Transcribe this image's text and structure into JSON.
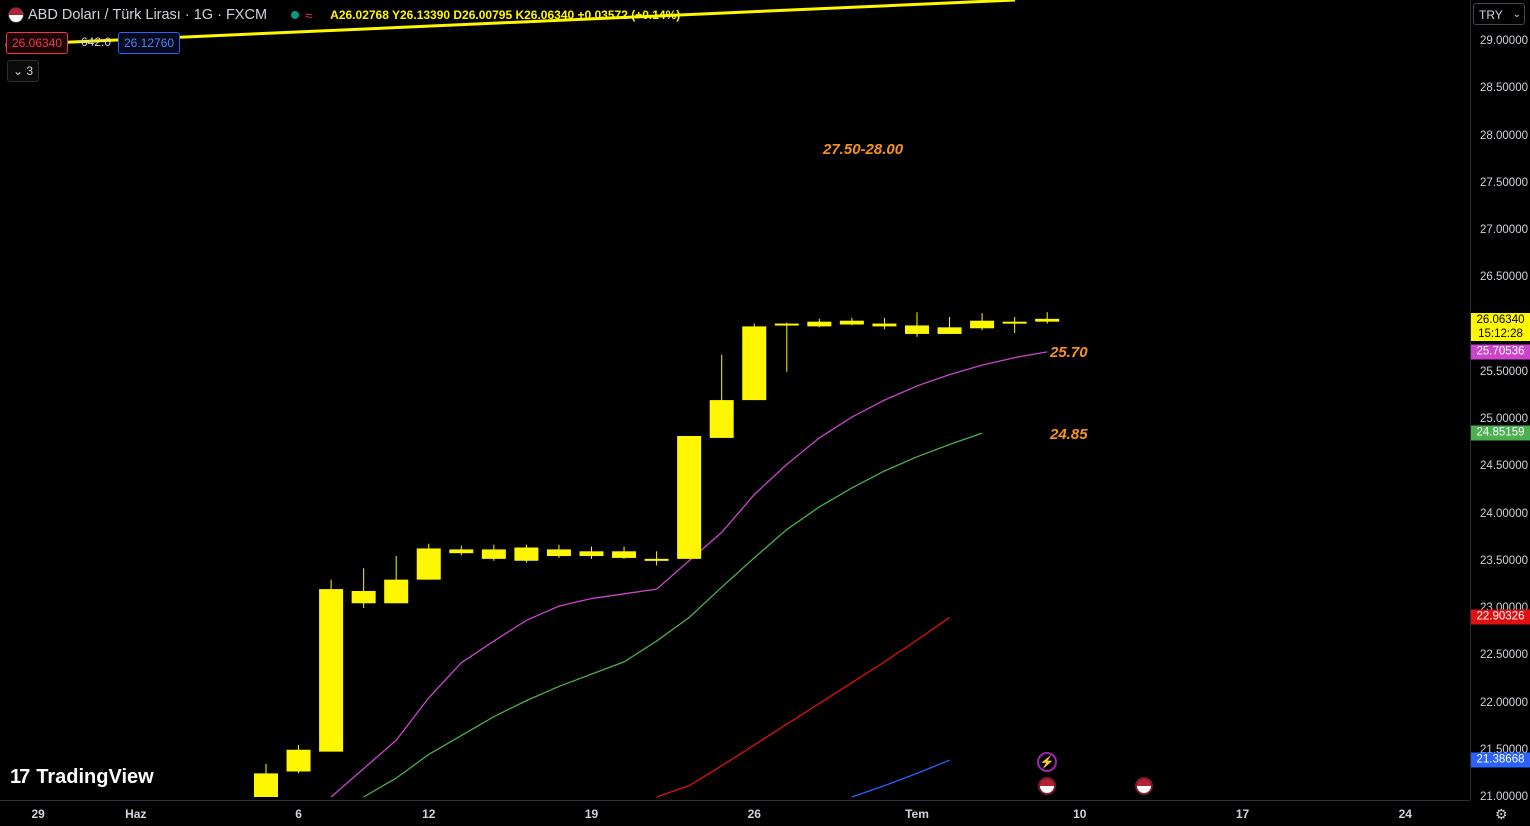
{
  "header": {
    "title": "ABD Doları / Türk Lirası · 1G · FXCM",
    "ohlc": "A26.02768 Y26.13390 D26.00795 K26.06340 +0.03572 (+0.14%)",
    "sell_price": "26.06340",
    "spread": "642.0",
    "buy_price": "26.12760",
    "collapse_label": "3",
    "currency": "TRY",
    "wave_glyph": "≈"
  },
  "brand": {
    "logo_mark": "17",
    "name": "TradingView"
  },
  "annotations": {
    "target_range": "27.50-28.00",
    "ma1_label": "25.70",
    "ma2_label": "24.85"
  },
  "chart_data": {
    "type": "candlestick",
    "ylim": [
      21.0,
      29.2
    ],
    "y_ticks": [
      "29.00000",
      "28.50000",
      "28.00000",
      "27.50000",
      "27.00000",
      "26.50000",
      "26.00000",
      "25.50000",
      "25.00000",
      "24.50000",
      "24.00000",
      "23.50000",
      "23.00000",
      "22.50000",
      "22.00000",
      "21.50000",
      "21.00000"
    ],
    "x_ticks": [
      {
        "label": "29",
        "x": -7
      },
      {
        "label": "Haz",
        "x": -4
      },
      {
        "label": "6",
        "x": 1
      },
      {
        "label": "12",
        "x": 5
      },
      {
        "label": "19",
        "x": 10
      },
      {
        "label": "26",
        "x": 15
      },
      {
        "label": "Tem",
        "x": 20
      },
      {
        "label": "10",
        "x": 25
      },
      {
        "label": "17",
        "x": 30
      },
      {
        "label": "24",
        "x": 35
      }
    ],
    "candles": [
      {
        "x": 0,
        "o": 21.0,
        "h": 21.35,
        "l": 21.0,
        "c": 21.25
      },
      {
        "x": 1,
        "o": 21.27,
        "h": 21.55,
        "l": 21.25,
        "c": 21.5
      },
      {
        "x": 2,
        "o": 21.48,
        "h": 23.3,
        "l": 21.48,
        "c": 23.2
      },
      {
        "x": 3,
        "o": 23.05,
        "h": 23.42,
        "l": 23.0,
        "c": 23.18
      },
      {
        "x": 4,
        "o": 23.05,
        "h": 23.55,
        "l": 23.05,
        "c": 23.3
      },
      {
        "x": 5,
        "o": 23.3,
        "h": 23.68,
        "l": 23.3,
        "c": 23.63
      },
      {
        "x": 6,
        "o": 23.58,
        "h": 23.66,
        "l": 23.56,
        "c": 23.62
      },
      {
        "x": 7,
        "o": 23.52,
        "h": 23.67,
        "l": 23.5,
        "c": 23.62
      },
      {
        "x": 8,
        "o": 23.5,
        "h": 23.67,
        "l": 23.48,
        "c": 23.64
      },
      {
        "x": 9,
        "o": 23.55,
        "h": 23.67,
        "l": 23.53,
        "c": 23.62
      },
      {
        "x": 10,
        "o": 23.55,
        "h": 23.65,
        "l": 23.52,
        "c": 23.6
      },
      {
        "x": 11,
        "o": 23.53,
        "h": 23.65,
        "l": 23.52,
        "c": 23.6
      },
      {
        "x": 12,
        "o": 23.52,
        "h": 23.6,
        "l": 23.45,
        "c": 23.52
      },
      {
        "x": 13,
        "o": 23.52,
        "h": 24.82,
        "l": 23.52,
        "c": 24.82
      },
      {
        "x": 14,
        "o": 24.8,
        "h": 25.68,
        "l": 24.8,
        "c": 25.2
      },
      {
        "x": 15,
        "o": 25.2,
        "h": 26.01,
        "l": 25.2,
        "c": 25.98
      },
      {
        "x": 16,
        "o": 26.0,
        "h": 26.02,
        "l": 25.5,
        "c": 26.01
      },
      {
        "x": 17,
        "o": 25.98,
        "h": 26.06,
        "l": 25.97,
        "c": 26.03
      },
      {
        "x": 18,
        "o": 26.0,
        "h": 26.07,
        "l": 25.99,
        "c": 26.04
      },
      {
        "x": 19,
        "o": 25.98,
        "h": 26.07,
        "l": 25.95,
        "c": 26.01
      },
      {
        "x": 20,
        "o": 25.9,
        "h": 26.13,
        "l": 25.87,
        "c": 25.99
      },
      {
        "x": 21,
        "o": 25.9,
        "h": 26.08,
        "l": 25.9,
        "c": 25.97
      },
      {
        "x": 22,
        "o": 25.96,
        "h": 26.12,
        "l": 25.94,
        "c": 26.04
      },
      {
        "x": 23,
        "o": 26.02,
        "h": 26.08,
        "l": 25.91,
        "c": 26.03
      },
      {
        "x": 24,
        "o": 26.03,
        "h": 26.13,
        "l": 26.01,
        "c": 26.06
      }
    ],
    "series": [
      {
        "name": "",
        "color": "#cc44cc",
        "last": "25.70536",
        "points": [
          [
            2,
            21.0
          ],
          [
            4,
            21.6
          ],
          [
            5,
            22.05
          ],
          [
            6,
            22.42
          ],
          [
            7,
            22.65
          ],
          [
            8,
            22.87
          ],
          [
            9,
            23.02
          ],
          [
            10,
            23.1
          ],
          [
            11,
            23.15
          ],
          [
            12,
            23.2
          ],
          [
            13,
            23.5
          ],
          [
            14,
            23.8
          ],
          [
            15,
            24.2
          ],
          [
            16,
            24.52
          ],
          [
            17,
            24.8
          ],
          [
            18,
            25.02
          ],
          [
            19,
            25.2
          ],
          [
            20,
            25.35
          ],
          [
            21,
            25.47
          ],
          [
            22,
            25.57
          ],
          [
            23,
            25.65
          ],
          [
            24,
            25.71
          ]
        ]
      },
      {
        "name": "",
        "color": "#4caf50",
        "last": "24.85159",
        "points": [
          [
            3,
            21.0
          ],
          [
            4,
            21.2
          ],
          [
            5,
            21.45
          ],
          [
            6,
            21.65
          ],
          [
            7,
            21.85
          ],
          [
            8,
            22.02
          ],
          [
            9,
            22.17
          ],
          [
            10,
            22.3
          ],
          [
            11,
            22.43
          ],
          [
            12,
            22.65
          ],
          [
            13,
            22.9
          ],
          [
            14,
            23.22
          ],
          [
            15,
            23.53
          ],
          [
            16,
            23.83
          ],
          [
            17,
            24.07
          ],
          [
            18,
            24.27
          ],
          [
            19,
            24.45
          ],
          [
            20,
            24.6
          ],
          [
            21,
            24.73
          ],
          [
            22,
            24.85
          ]
        ]
      },
      {
        "name": "",
        "color": "#e01010",
        "last": "22.90326",
        "points": [
          [
            12,
            21.0
          ],
          [
            13,
            21.12
          ],
          [
            14,
            21.33
          ],
          [
            15,
            21.55
          ],
          [
            16,
            21.77
          ],
          [
            17,
            21.99
          ],
          [
            18,
            22.21
          ],
          [
            19,
            22.43
          ],
          [
            20,
            22.66
          ],
          [
            21,
            22.9
          ]
        ]
      },
      {
        "name": "",
        "color": "#2962ff",
        "last": "21.38668",
        "points": [
          [
            18,
            21.0
          ],
          [
            19,
            21.12
          ],
          [
            20,
            21.25
          ],
          [
            21,
            21.39
          ]
        ]
      }
    ],
    "trendline": {
      "color": "#fff700",
      "points": [
        [
          -8,
          29.2
        ],
        [
          24,
          29.5
        ]
      ]
    },
    "last_price_badge": {
      "value": "26.06340",
      "countdown": "15:12:28"
    },
    "grid": false
  }
}
